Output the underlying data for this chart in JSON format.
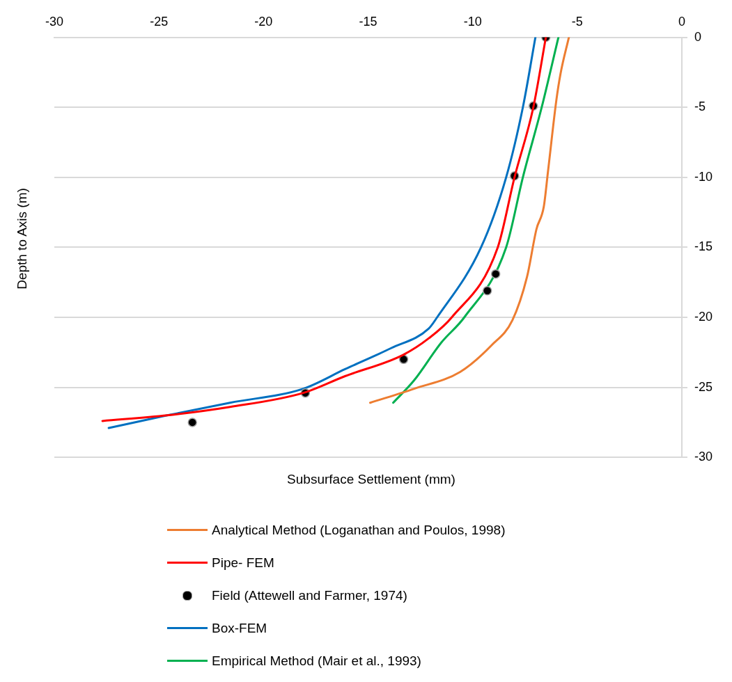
{
  "chart_data": {
    "type": "line",
    "xlabel": "Subsurface Settlement (mm)",
    "ylabel": "Depth to Axis (m)",
    "xlim": [
      -30,
      0
    ],
    "xticks": [
      -30,
      -25,
      -20,
      -15,
      -10,
      -5,
      0
    ],
    "ylim": [
      -30,
      0
    ],
    "yticks": [
      -30,
      -25,
      -20,
      -15,
      -10,
      -5,
      0
    ],
    "grid": "y",
    "legend": "bottom",
    "line_style": "solid",
    "series": [
      {
        "name": "Analytical Method (Loganathan and Poulos, 1998)",
        "type": "line",
        "marker": "none",
        "color": "#ed7d31",
        "x": [
          -5.4,
          -5.8,
          -6.0,
          -6.4,
          -6.6,
          -6.95,
          -7.4,
          -8.1,
          -9.1,
          -10.6,
          -12.8,
          -14.9
        ],
        "values": [
          0,
          -2.6,
          -4.5,
          -9.6,
          -12.1,
          -13.7,
          -17.1,
          -20.2,
          -22.0,
          -23.9,
          -25.1,
          -26.1
        ]
      },
      {
        "name": "Pipe- FEM",
        "type": "line",
        "marker": "none",
        "color": "#ff0000",
        "x": [
          -6.5,
          -7.1,
          -8.0,
          -8.8,
          -11.0,
          -12.1,
          -13.35,
          -16.1,
          -18.1,
          -21.6,
          -24.6,
          -27.7
        ],
        "values": [
          0,
          -5,
          -10,
          -15,
          -20,
          -21.5,
          -22.7,
          -24.2,
          -25.4,
          -26.4,
          -27.0,
          -27.4
        ]
      },
      {
        "name": "Field (Attewell and Farmer, 1974)",
        "type": "scatter",
        "marker": "circle",
        "color": "#000000",
        "x": [
          -6.5,
          -7.1,
          -8.0,
          -8.9,
          -9.3,
          -13.3,
          -18.0,
          -23.4
        ],
        "values": [
          0,
          -4.9,
          -9.9,
          -16.9,
          -18.1,
          -23.0,
          -25.4,
          -27.5
        ]
      },
      {
        "name": "Box-FEM",
        "type": "line",
        "marker": "none",
        "color": "#0070c0",
        "x": [
          -7.0,
          -7.6,
          -8.4,
          -9.6,
          -11.7,
          -12.1,
          -13.9,
          -16.1,
          -18.1,
          -21.6,
          -24.6,
          -27.4
        ],
        "values": [
          0,
          -5,
          -10,
          -15,
          -20,
          -20.8,
          -22.2,
          -23.7,
          -25.1,
          -26.1,
          -27.0,
          -27.9
        ]
      },
      {
        "name": "Empirical Method (Mair et al., 1993)",
        "type": "line",
        "marker": "none",
        "color": "#00b050",
        "x": [
          -5.9,
          -6.7,
          -7.6,
          -8.4,
          -10.4,
          -11.5,
          -12.8,
          -13.8
        ],
        "values": [
          0,
          -5,
          -10,
          -15,
          -20,
          -21.8,
          -24.5,
          -26.1
        ]
      }
    ]
  }
}
